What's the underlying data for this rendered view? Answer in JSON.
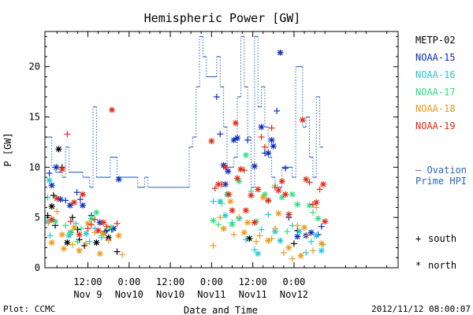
{
  "chart_data": {
    "type": "scatter",
    "title": "Hemispheric Power [GW]",
    "ylabel": "P [GW]",
    "xlabel": "Date and Time",
    "ylim": [
      0,
      23.5
    ],
    "yticks": [
      0,
      5,
      10,
      15,
      20
    ],
    "xlim_hours": [
      -0.5,
      102.3
    ],
    "xticks": [
      {
        "t": 12,
        "top": "12:00",
        "bottom": "Nov 9"
      },
      {
        "t": 24,
        "top": "0:00",
        "bottom": "Nov10"
      },
      {
        "t": 36,
        "top": "12:00",
        "bottom": "Nov10"
      },
      {
        "t": 48,
        "top": "0:00",
        "bottom": "Nov11"
      },
      {
        "t": 60,
        "top": "12:00",
        "bottom": "Nov11"
      },
      {
        "t": 72,
        "top": "0:00",
        "bottom": "Nov12"
      }
    ],
    "grid": false,
    "legend": [
      {
        "name": "METP-02",
        "color": "#000000"
      },
      {
        "name": "NOAA-15",
        "color": "#0a2dbd"
      },
      {
        "name": "NOAA-16",
        "color": "#23c8d8"
      },
      {
        "name": "NOAA-17",
        "color": "#30e080"
      },
      {
        "name": "NOAA-18",
        "color": "#f0981a"
      },
      {
        "name": "NOAA-19",
        "color": "#e02a14"
      }
    ],
    "symbol_legend": [
      {
        "marker": "+",
        "label": "south"
      },
      {
        "marker": "*",
        "label": "north"
      }
    ],
    "ovation_label": [
      "– Ovation",
      "Prime HPI"
    ],
    "ovation_color": "#2a62c0",
    "ovation_steps": [
      [
        -0.5,
        13
      ],
      [
        0.5,
        13
      ],
      [
        1.5,
        10
      ],
      [
        2.5,
        9.5
      ],
      [
        4.5,
        9
      ],
      [
        5.5,
        12
      ],
      [
        6.5,
        9.5
      ],
      [
        10.5,
        9
      ],
      [
        12.5,
        8
      ],
      [
        13.5,
        16
      ],
      [
        14.5,
        9
      ],
      [
        16.5,
        9
      ],
      [
        18.5,
        11
      ],
      [
        20.5,
        9
      ],
      [
        26.5,
        8
      ],
      [
        28.5,
        9
      ],
      [
        29.5,
        8
      ],
      [
        41.5,
        12
      ],
      [
        42.5,
        13
      ],
      [
        43.5,
        18
      ],
      [
        44.5,
        23
      ],
      [
        45.5,
        21
      ],
      [
        46.5,
        19
      ],
      [
        49.5,
        21
      ],
      [
        50.5,
        18
      ],
      [
        51.5,
        14
      ],
      [
        52.5,
        10
      ],
      [
        54.5,
        11
      ],
      [
        55.5,
        17
      ],
      [
        56.5,
        23
      ],
      [
        57.5,
        18
      ],
      [
        58.5,
        13
      ],
      [
        59.5,
        8
      ],
      [
        60.5,
        23
      ],
      [
        61.5,
        16
      ],
      [
        62.5,
        18
      ],
      [
        63.5,
        14
      ],
      [
        64.5,
        11
      ],
      [
        65.5,
        9
      ],
      [
        66.5,
        8
      ],
      [
        68.5,
        10
      ],
      [
        71.5,
        9
      ],
      [
        72.5,
        20
      ],
      [
        74.5,
        14
      ],
      [
        75.5,
        15
      ],
      [
        76.5,
        11
      ],
      [
        77.5,
        9
      ],
      [
        78.5,
        17
      ],
      [
        79.5,
        12
      ],
      [
        80.5,
        12
      ]
    ],
    "ovation_end": 80.5,
    "series": [
      {
        "name": "METP-02",
        "color": "#000000",
        "points": [
          [
            3.5,
            11.8,
            "*"
          ],
          [
            4.5,
            10.0,
            "+"
          ],
          [
            2,
            7.2,
            "+"
          ],
          [
            1.5,
            6.1,
            "*"
          ],
          [
            0.3,
            5.2,
            "+"
          ],
          [
            2.5,
            4.2,
            "+"
          ],
          [
            7.5,
            5.0,
            "+"
          ],
          [
            7,
            3.5,
            "*"
          ],
          [
            9,
            3.8,
            "+"
          ],
          [
            9.5,
            2.8,
            "+"
          ],
          [
            6,
            2.5,
            "*"
          ],
          [
            11,
            2.2,
            "+"
          ],
          [
            14.5,
            2.5,
            "*"
          ],
          [
            17,
            3.6,
            "+"
          ],
          [
            18,
            3.0,
            "*"
          ],
          [
            19,
            3.8,
            "+"
          ],
          [
            20.5,
            1.6,
            "+"
          ],
          [
            59,
            2.9,
            "*"
          ],
          [
            73,
            3.7,
            "+"
          ],
          [
            72,
            2.4,
            "+"
          ]
        ]
      },
      {
        "name": "NOAA-15",
        "color": "#0a2dbd",
        "points": [
          [
            0.8,
            9.4,
            "+"
          ],
          [
            1.5,
            8.2,
            "*"
          ],
          [
            2.8,
            10.0,
            "*"
          ],
          [
            4,
            6.8,
            "*"
          ],
          [
            5.5,
            6.7,
            "+"
          ],
          [
            6.8,
            6.2,
            "*"
          ],
          [
            8.8,
            7.5,
            "+"
          ],
          [
            9.8,
            6.8,
            "+"
          ],
          [
            10.5,
            6.2,
            "*"
          ],
          [
            13,
            5.2,
            "+"
          ],
          [
            15.5,
            4.5,
            "*"
          ],
          [
            17.5,
            3.7,
            "+"
          ],
          [
            19.5,
            3.9,
            "*"
          ],
          [
            21,
            8.8,
            "*"
          ],
          [
            49.5,
            17.0,
            "+"
          ],
          [
            50.5,
            13.3,
            "+"
          ],
          [
            51.5,
            10.2,
            "*"
          ],
          [
            52,
            8.3,
            "*"
          ],
          [
            52.8,
            9.6,
            "*"
          ],
          [
            54.5,
            12.7,
            "*"
          ],
          [
            55.5,
            12.9,
            "*"
          ],
          [
            58.5,
            12.7,
            "+"
          ],
          [
            60.5,
            10.1,
            "*"
          ],
          [
            62.5,
            14.0,
            "*"
          ],
          [
            63.5,
            11.4,
            "+"
          ],
          [
            64.5,
            11.4,
            "*"
          ],
          [
            65.5,
            12.7,
            "*"
          ],
          [
            66,
            12.1,
            "*"
          ],
          [
            67,
            15.6,
            "+"
          ],
          [
            68,
            21.4,
            "*"
          ],
          [
            69.5,
            9.9,
            "+"
          ],
          [
            70.5,
            5.0,
            "+"
          ],
          [
            73,
            3.1,
            "*"
          ],
          [
            75.5,
            3.2,
            "*"
          ],
          [
            77,
            3.5,
            "*"
          ],
          [
            79,
            3.3,
            "+"
          ],
          [
            80,
            4.1,
            "+"
          ]
        ]
      },
      {
        "name": "NOAA-16",
        "color": "#23c8d8",
        "points": [
          [
            0.3,
            4.6,
            "*"
          ],
          [
            0.8,
            8.7,
            "*"
          ],
          [
            1,
            3.2,
            "+"
          ],
          [
            6.5,
            3.2,
            "*"
          ],
          [
            8.5,
            4.4,
            "+"
          ],
          [
            11.5,
            3.4,
            "*"
          ],
          [
            12.5,
            2.6,
            "+"
          ],
          [
            14,
            3.9,
            "+"
          ],
          [
            16,
            3.0,
            "+"
          ],
          [
            48.5,
            6.6,
            "+"
          ],
          [
            50.5,
            6.6,
            "*"
          ],
          [
            52,
            5.2,
            "*"
          ],
          [
            53,
            7.3,
            "+"
          ],
          [
            54,
            4.5,
            "+"
          ],
          [
            56,
            4.9,
            "*"
          ],
          [
            58,
            2.8,
            "+"
          ],
          [
            60.5,
            1.8,
            "+"
          ],
          [
            61.5,
            1.4,
            "*"
          ],
          [
            62.5,
            3.8,
            "+"
          ],
          [
            64.5,
            5.3,
            "+"
          ],
          [
            66.5,
            3.6,
            "*"
          ],
          [
            68,
            2.7,
            "*"
          ],
          [
            71.5,
            4.2,
            "+"
          ],
          [
            73.5,
            3.6,
            "*"
          ],
          [
            75.5,
            1.5,
            "+"
          ],
          [
            77,
            2.6,
            "+"
          ],
          [
            78.5,
            3.2,
            "*"
          ],
          [
            80,
            1.7,
            "*"
          ]
        ]
      },
      {
        "name": "NOAA-17",
        "color": "#30e080",
        "points": [
          [
            0.3,
            7.0,
            "+"
          ],
          [
            2.5,
            4.6,
            "*"
          ],
          [
            5.5,
            4.2,
            "+"
          ],
          [
            7,
            3.5,
            "*"
          ],
          [
            9,
            2.6,
            "+"
          ],
          [
            10,
            3.9,
            "+"
          ],
          [
            13,
            4.9,
            "*"
          ],
          [
            14.5,
            5.5,
            "*"
          ],
          [
            16,
            3.2,
            "+"
          ],
          [
            18.5,
            4.0,
            "*"
          ],
          [
            48.5,
            4.7,
            "*"
          ],
          [
            50,
            4.3,
            "+"
          ],
          [
            51,
            6.4,
            "+"
          ],
          [
            52.5,
            7.3,
            "*"
          ],
          [
            54,
            4.3,
            "*"
          ],
          [
            56,
            8.6,
            "*"
          ],
          [
            58,
            11.2,
            "*"
          ],
          [
            59.5,
            7.6,
            "+"
          ],
          [
            61,
            4.6,
            "*"
          ],
          [
            63.5,
            7.3,
            "*"
          ],
          [
            64.5,
            6.6,
            "+"
          ],
          [
            66.5,
            8.2,
            "+"
          ],
          [
            68.5,
            7.0,
            "*"
          ],
          [
            70,
            3.6,
            "+"
          ],
          [
            71.5,
            7.3,
            "*"
          ],
          [
            73,
            6.3,
            "*"
          ],
          [
            76.5,
            6.2,
            "*"
          ],
          [
            77.5,
            5.5,
            "+"
          ],
          [
            79,
            4.9,
            "*"
          ],
          [
            80.5,
            2.3,
            "+"
          ]
        ]
      },
      {
        "name": "NOAA-18",
        "color": "#f0981a",
        "points": [
          [
            0.5,
            4.5,
            "+"
          ],
          [
            1.5,
            2.5,
            "*"
          ],
          [
            3,
            5.6,
            "+"
          ],
          [
            4.5,
            3.3,
            "*"
          ],
          [
            5,
            1.9,
            "*"
          ],
          [
            7.5,
            2.3,
            "+"
          ],
          [
            8,
            4.0,
            "*"
          ],
          [
            9.5,
            1.7,
            "*"
          ],
          [
            11.5,
            2.4,
            "+"
          ],
          [
            12,
            4.4,
            "*"
          ],
          [
            14,
            3.5,
            "+"
          ],
          [
            15.5,
            1.4,
            "*"
          ],
          [
            16.5,
            3.4,
            "*"
          ],
          [
            18,
            2.7,
            "+"
          ],
          [
            21,
            3.2,
            "*"
          ],
          [
            22,
            1.3,
            "+"
          ],
          [
            48.5,
            2.2,
            "+"
          ],
          [
            50.5,
            5.0,
            "+"
          ],
          [
            51.5,
            3.9,
            "*"
          ],
          [
            53.5,
            6.6,
            "*"
          ],
          [
            54.5,
            3.3,
            "+"
          ],
          [
            56,
            5.0,
            "+"
          ],
          [
            57.5,
            3.5,
            "*"
          ],
          [
            58.5,
            4.5,
            "*"
          ],
          [
            61,
            2.6,
            "+"
          ],
          [
            62,
            3.2,
            "+"
          ],
          [
            63,
            7.0,
            "*"
          ],
          [
            64.5,
            2.7,
            "*"
          ],
          [
            65.5,
            2.9,
            "+"
          ],
          [
            66.5,
            3.9,
            "+"
          ],
          [
            67.5,
            5.4,
            "*"
          ],
          [
            69,
            1.5,
            "+"
          ],
          [
            70.5,
            2.0,
            "*"
          ],
          [
            71.5,
            0.9,
            "+"
          ],
          [
            73,
            4.2,
            "+"
          ],
          [
            74,
            1.2,
            "*"
          ],
          [
            75,
            4.0,
            "*"
          ],
          [
            76,
            3.2,
            "+"
          ],
          [
            77.5,
            1.7,
            "+"
          ],
          [
            78.5,
            6.0,
            "+"
          ],
          [
            80,
            2.4,
            "*"
          ]
        ]
      },
      {
        "name": "NOAA-19",
        "color": "#e02a14",
        "points": [
          [
            1.5,
            4.8,
            "*"
          ],
          [
            3,
            6.9,
            "*"
          ],
          [
            4.5,
            9.8,
            "*"
          ],
          [
            6,
            13.3,
            "+"
          ],
          [
            7,
            4.6,
            "+"
          ],
          [
            8,
            6.5,
            "*"
          ],
          [
            9.5,
            3.3,
            "*"
          ],
          [
            10.5,
            7.3,
            "*"
          ],
          [
            12,
            3.9,
            "+"
          ],
          [
            13,
            4.3,
            "+"
          ],
          [
            14,
            4.8,
            "+"
          ],
          [
            15,
            3.7,
            "*"
          ],
          [
            16.5,
            4.5,
            "*"
          ],
          [
            17.5,
            4.1,
            "+"
          ],
          [
            19,
            15.7,
            "*"
          ],
          [
            20.5,
            4.4,
            "+"
          ],
          [
            48,
            12.6,
            "*"
          ],
          [
            49,
            7.9,
            "+"
          ],
          [
            50,
            8.3,
            "*"
          ],
          [
            51,
            8.3,
            "+"
          ],
          [
            52,
            10.0,
            "*"
          ],
          [
            53,
            7.3,
            "*"
          ],
          [
            54,
            5.7,
            "*"
          ],
          [
            55,
            14.4,
            "*"
          ],
          [
            55.5,
            8.9,
            "*"
          ],
          [
            56.5,
            9.8,
            "*"
          ],
          [
            57.5,
            9.7,
            "+"
          ],
          [
            58,
            5.7,
            "*"
          ],
          [
            59.5,
            7.2,
            "*"
          ],
          [
            60.5,
            4.5,
            "*"
          ],
          [
            61.5,
            7.8,
            "*"
          ],
          [
            62.5,
            13.0,
            "+"
          ],
          [
            63.5,
            12.0,
            "+"
          ],
          [
            64.5,
            6.7,
            "*"
          ],
          [
            65.5,
            13.9,
            "+"
          ],
          [
            66.5,
            8.0,
            "+"
          ],
          [
            67.5,
            7.7,
            "*"
          ],
          [
            68.5,
            8.6,
            "*"
          ],
          [
            69.5,
            7.3,
            "*"
          ],
          [
            70.5,
            5.3,
            "*"
          ],
          [
            74.5,
            14.7,
            "*"
          ],
          [
            75.5,
            8.8,
            "*"
          ],
          [
            76.5,
            8.5,
            "+"
          ],
          [
            77.5,
            6.3,
            "+"
          ],
          [
            78.5,
            6.5,
            "*"
          ],
          [
            79.5,
            7.8,
            "+"
          ],
          [
            80.5,
            8.3,
            "*"
          ],
          [
            81,
            4.6,
            "*"
          ]
        ]
      }
    ]
  },
  "footer": {
    "left": "Plot: CCMC",
    "right": "2012/11/12 08:00:07"
  }
}
